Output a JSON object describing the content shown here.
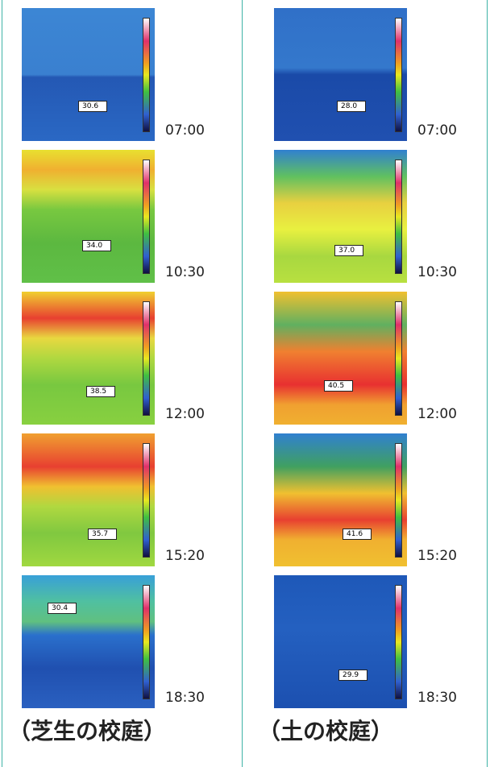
{
  "columns": [
    {
      "caption": "（芝生の校庭）",
      "images": [
        {
          "time": "07:00",
          "reading": "30.6"
        },
        {
          "time": "10:30",
          "reading": "34.0"
        },
        {
          "time": "12:00",
          "reading": "38.5"
        },
        {
          "time": "15:20",
          "reading": "35.7"
        },
        {
          "time": "18:30",
          "reading": "30.4"
        }
      ]
    },
    {
      "caption": "（土の校庭）",
      "images": [
        {
          "time": "07:00",
          "reading": "28.0"
        },
        {
          "time": "10:30",
          "reading": "37.0"
        },
        {
          "time": "12:00",
          "reading": "40.5"
        },
        {
          "time": "15:20",
          "reading": "41.6"
        },
        {
          "time": "18:30",
          "reading": "29.9"
        }
      ]
    }
  ]
}
